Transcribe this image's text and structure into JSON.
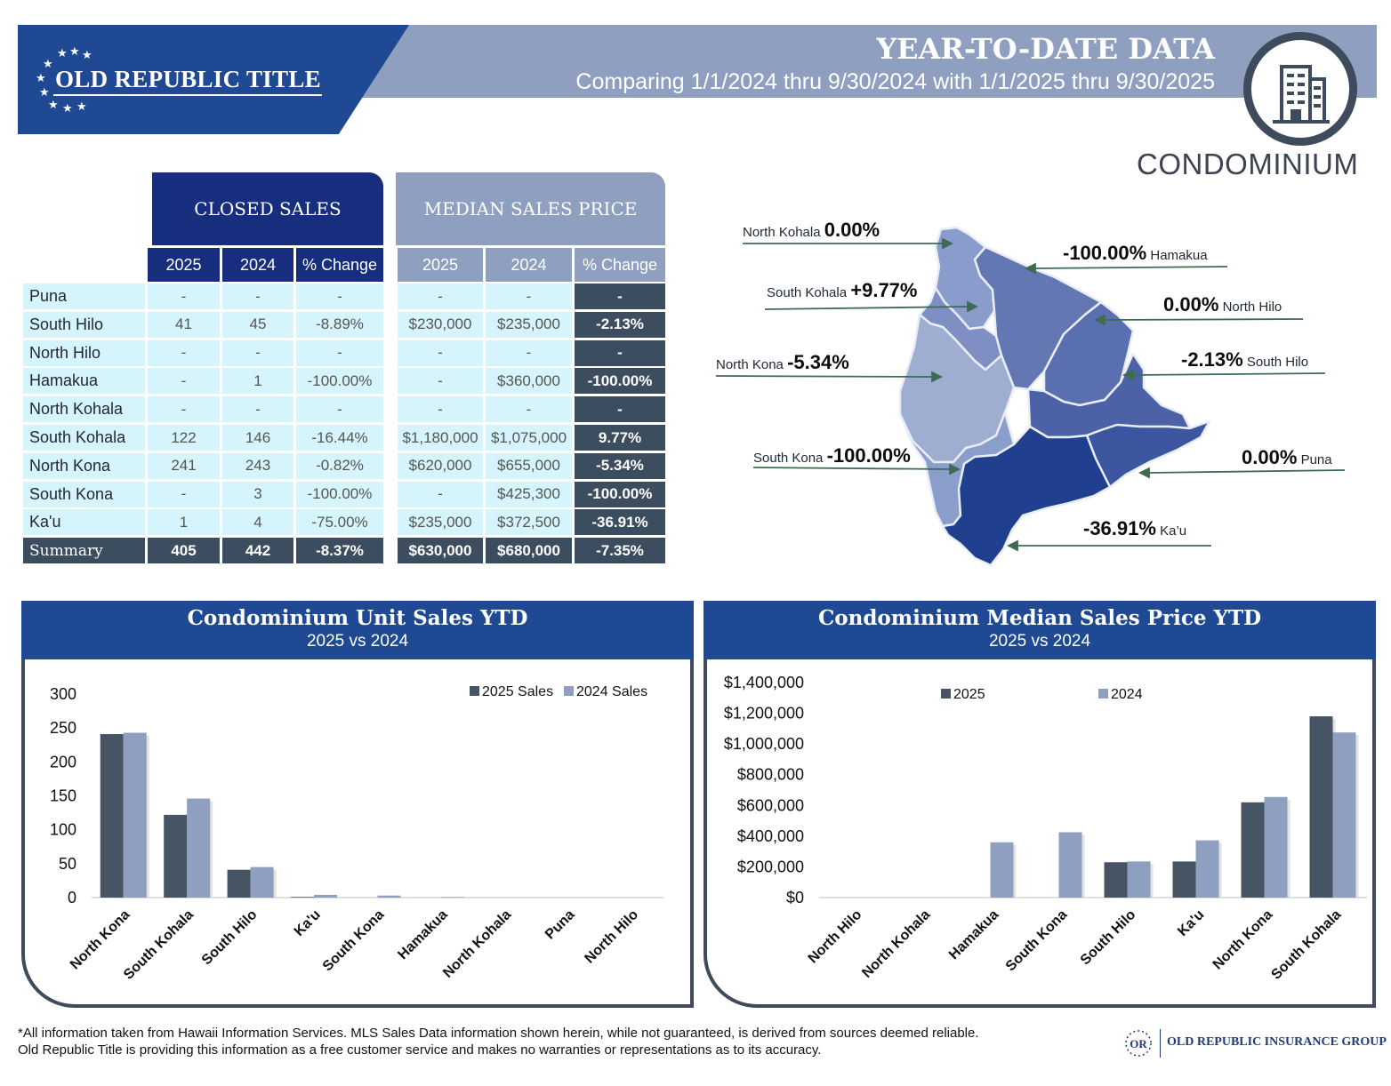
{
  "header": {
    "brand": "OLD REPUBLIC TITLE",
    "title": "YEAR-TO-DATE DATA",
    "subtitle": "Comparing 1/1/2024 thru  9/30/2024 with 1/1/2025 thru 9/30/2025",
    "category": "CONDOMINIUM"
  },
  "closed_sales": {
    "heading": "CLOSED SALES",
    "columns": [
      "2025",
      "2024",
      "% Change"
    ]
  },
  "median_price": {
    "heading": "MEDIAN SALES PRICE",
    "columns": [
      "2025",
      "2024",
      "% Change"
    ]
  },
  "rows": [
    {
      "name": "Puna",
      "s25": "-",
      "s24": "-",
      "sch": "-",
      "p25": "-",
      "p24": "-",
      "pch": "-"
    },
    {
      "name": "South Hilo",
      "s25": "41",
      "s24": "45",
      "sch": "-8.89%",
      "p25": "$230,000",
      "p24": "$235,000",
      "pch": "-2.13%"
    },
    {
      "name": "North Hilo",
      "s25": "-",
      "s24": "-",
      "sch": "-",
      "p25": "-",
      "p24": "-",
      "pch": "-"
    },
    {
      "name": "Hamakua",
      "s25": "-",
      "s24": "1",
      "sch": "-100.00%",
      "p25": "-",
      "p24": "$360,000",
      "pch": "-100.00%"
    },
    {
      "name": "North Kohala",
      "s25": "-",
      "s24": "-",
      "sch": "-",
      "p25": "-",
      "p24": "-",
      "pch": "-"
    },
    {
      "name": "South Kohala",
      "s25": "122",
      "s24": "146",
      "sch": "-16.44%",
      "p25": "$1,180,000",
      "p24": "$1,075,000",
      "pch": "9.77%"
    },
    {
      "name": "North Kona",
      "s25": "241",
      "s24": "243",
      "sch": "-0.82%",
      "p25": "$620,000",
      "p24": "$655,000",
      "pch": "-5.34%"
    },
    {
      "name": "South Kona",
      "s25": "-",
      "s24": "3",
      "sch": "-100.00%",
      "p25": "-",
      "p24": "$425,300",
      "pch": "-100.00%"
    },
    {
      "name": "Ka'u",
      "s25": "1",
      "s24": "4",
      "sch": "-75.00%",
      "p25": "$235,000",
      "p24": "$372,500",
      "pch": "-36.91%"
    },
    {
      "name": "Summary",
      "s25": "405",
      "s24": "442",
      "sch": "-8.37%",
      "p25": "$630,000",
      "p24": "$680,000",
      "pch": "-7.35%"
    }
  ],
  "map_labels": [
    {
      "district": "North Kohala",
      "pct": "0.00%"
    },
    {
      "district": "Hamakua",
      "pct": "-100.00%"
    },
    {
      "district": "South Kohala",
      "pct": "+9.77%"
    },
    {
      "district": "North Hilo",
      "pct": "0.00%"
    },
    {
      "district": "North Kona",
      "pct": "-5.34%"
    },
    {
      "district": "South Hilo",
      "pct": "-2.13%"
    },
    {
      "district": "South Kona",
      "pct": "-100.00%"
    },
    {
      "district": "Puna",
      "pct": "0.00%"
    },
    {
      "district": "Ka’u",
      "pct": "-36.91%"
    }
  ],
  "chart_data": [
    {
      "type": "bar",
      "title": "Condominium Unit Sales YTD",
      "subtitle": "2025 vs 2024",
      "categories": [
        "North Kona",
        "South Kohala",
        "South Hilo",
        "Ka'u",
        "South Kona",
        "Hamakua",
        "North Kohala",
        "Puna",
        "North Hilo"
      ],
      "series": [
        {
          "name": "2025 Sales",
          "values": [
            241,
            122,
            41,
            1,
            0,
            0,
            0,
            0,
            0
          ],
          "color": "#465464"
        },
        {
          "name": "2024 Sales",
          "values": [
            243,
            146,
            45,
            4,
            3,
            1,
            0,
            0,
            0
          ],
          "color": "#8e9fc0"
        }
      ],
      "yticks": [
        "0",
        "50",
        "100",
        "150",
        "200",
        "250",
        "300"
      ],
      "ylim": [
        0,
        300
      ],
      "legend": "top-right"
    },
    {
      "type": "bar",
      "title": "Condominium Median Sales Price YTD",
      "subtitle": "2025 vs 2024",
      "categories": [
        "North Hilo",
        "North Kohala",
        "Hamakua",
        "South Kona",
        "South Hilo",
        "Ka'u",
        "North Kona",
        "South Kohala"
      ],
      "series": [
        {
          "name": "2025",
          "values": [
            0,
            0,
            0,
            0,
            230000,
            235000,
            620000,
            1180000
          ],
          "color": "#465464"
        },
        {
          "name": "2024",
          "values": [
            0,
            0,
            360000,
            425300,
            235000,
            372500,
            655000,
            1075000
          ],
          "color": "#8e9fc0"
        }
      ],
      "yticks": [
        "$0",
        "$200,000",
        "$400,000",
        "$600,000",
        "$800,000",
        "$1,000,000",
        "$1,200,000",
        "$1,400,000"
      ],
      "ylim": [
        0,
        1400000
      ],
      "legend": "top"
    }
  ],
  "footer": {
    "note_line1": "*All information taken from Hawaii Information Services.  MLS Sales Data information shown herein, while not guaranteed,  is derived from sources deemed reliable.",
    "note_line2": "Old Republic Title is providing this information as a free customer service and makes no warranties or representations as to its accuracy.",
    "org": "OLD REPUBLIC INSURANCE GROUP",
    "seal_text": "OR"
  },
  "colors": {
    "navy": "#1f4a93",
    "slate": "#3d4b5d",
    "periwinkle": "#8e9fc0",
    "light_cyan": "#d6f4fb"
  }
}
